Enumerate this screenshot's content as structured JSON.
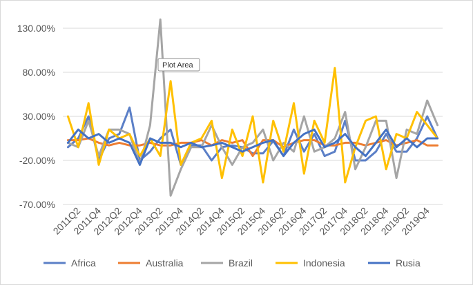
{
  "chart_data": {
    "type": "line",
    "title": "",
    "xlabel": "",
    "ylabel": "",
    "ylim": [
      -70,
      130
    ],
    "yticks": [
      "130.00%",
      "80.00%",
      "30.00%",
      "-20.00%",
      "-70.00%"
    ],
    "ytick_values": [
      130,
      80,
      30,
      -20,
      -70
    ],
    "grid": true,
    "legend_position": "bottom",
    "x": [
      "2011Q1",
      "2011Q2",
      "2011Q3",
      "2011Q4",
      "2012Q1",
      "2012Q2",
      "2012Q3",
      "2012Q4",
      "2013Q1",
      "2013Q2",
      "2013Q3",
      "2013Q4",
      "2014Q1",
      "2014Q2",
      "2014Q3",
      "2014Q4",
      "2015Q1",
      "2015Q2",
      "2015Q3",
      "2015Q4",
      "2016Q1",
      "2016Q2",
      "2016Q3",
      "2016Q4",
      "2017Q1",
      "2017Q2",
      "2017Q3",
      "2017Q4",
      "2018Q1",
      "2018Q2",
      "2018Q3",
      "2018Q4",
      "2019Q1",
      "2019Q2",
      "2019Q3",
      "2019Q4",
      "2020Q1"
    ],
    "x_tick_labels": [
      "2011Q2",
      "2011Q4",
      "2012Q2",
      "2012Q4",
      "2013Q2",
      "2013Q4",
      "2014Q2",
      "2014Q4",
      "2015Q2",
      "2015Q4",
      "2016Q2",
      "2016Q4",
      "2017Q2",
      "2017Q4",
      "2018Q2",
      "2018Q4",
      "2019Q2",
      "2019Q4"
    ],
    "series": [
      {
        "name": "Africa",
        "color": "#5b7fc7",
        "values": [
          -5,
          5,
          30,
          -20,
          5,
          10,
          40,
          -20,
          -10,
          5,
          15,
          -25,
          -3,
          -3,
          -20,
          -5,
          -3,
          -5,
          -12,
          -12,
          2,
          -15,
          15,
          -10,
          10,
          -15,
          -10,
          25,
          -20,
          -20,
          -10,
          10,
          -10,
          -10,
          5,
          30,
          5
        ]
      },
      {
        "name": "Australia",
        "color": "#ed7d31",
        "values": [
          3,
          3,
          5,
          0,
          -3,
          0,
          -3,
          -3,
          0,
          -3,
          -3,
          0,
          0,
          3,
          -3,
          3,
          0,
          3,
          -15,
          3,
          3,
          -5,
          0,
          3,
          3,
          -3,
          -3,
          0,
          0,
          -3,
          0,
          3,
          -3,
          0,
          3,
          -3,
          -3
        ]
      },
      {
        "name": "Brazil",
        "color": "#a5a5a5",
        "values": [
          0,
          -5,
          25,
          -15,
          15,
          15,
          10,
          -25,
          20,
          140,
          -60,
          -30,
          -5,
          -5,
          20,
          -5,
          -25,
          -5,
          0,
          15,
          -20,
          0,
          -10,
          30,
          -10,
          -5,
          5,
          35,
          -30,
          -5,
          25,
          25,
          -40,
          15,
          10,
          48,
          20
        ]
      },
      {
        "name": "Indonesia",
        "color": "#ffc000",
        "values": [
          30,
          -5,
          45,
          -25,
          15,
          5,
          10,
          -15,
          5,
          -15,
          70,
          -25,
          0,
          5,
          25,
          -40,
          15,
          -15,
          30,
          -45,
          25,
          -10,
          45,
          -35,
          25,
          0,
          85,
          -45,
          -5,
          25,
          30,
          -30,
          10,
          5,
          35,
          20,
          5
        ]
      },
      {
        "name": "Rusia",
        "color": "#4472c4",
        "values": [
          0,
          15,
          5,
          10,
          0,
          5,
          0,
          -25,
          5,
          0,
          0,
          -5,
          0,
          -5,
          -3,
          0,
          -5,
          -10,
          -5,
          0,
          3,
          -15,
          0,
          10,
          15,
          -5,
          0,
          10,
          -5,
          -15,
          0,
          15,
          -5,
          5,
          -5,
          5,
          5
        ]
      }
    ]
  },
  "tooltip": {
    "label": "Plot Area"
  }
}
